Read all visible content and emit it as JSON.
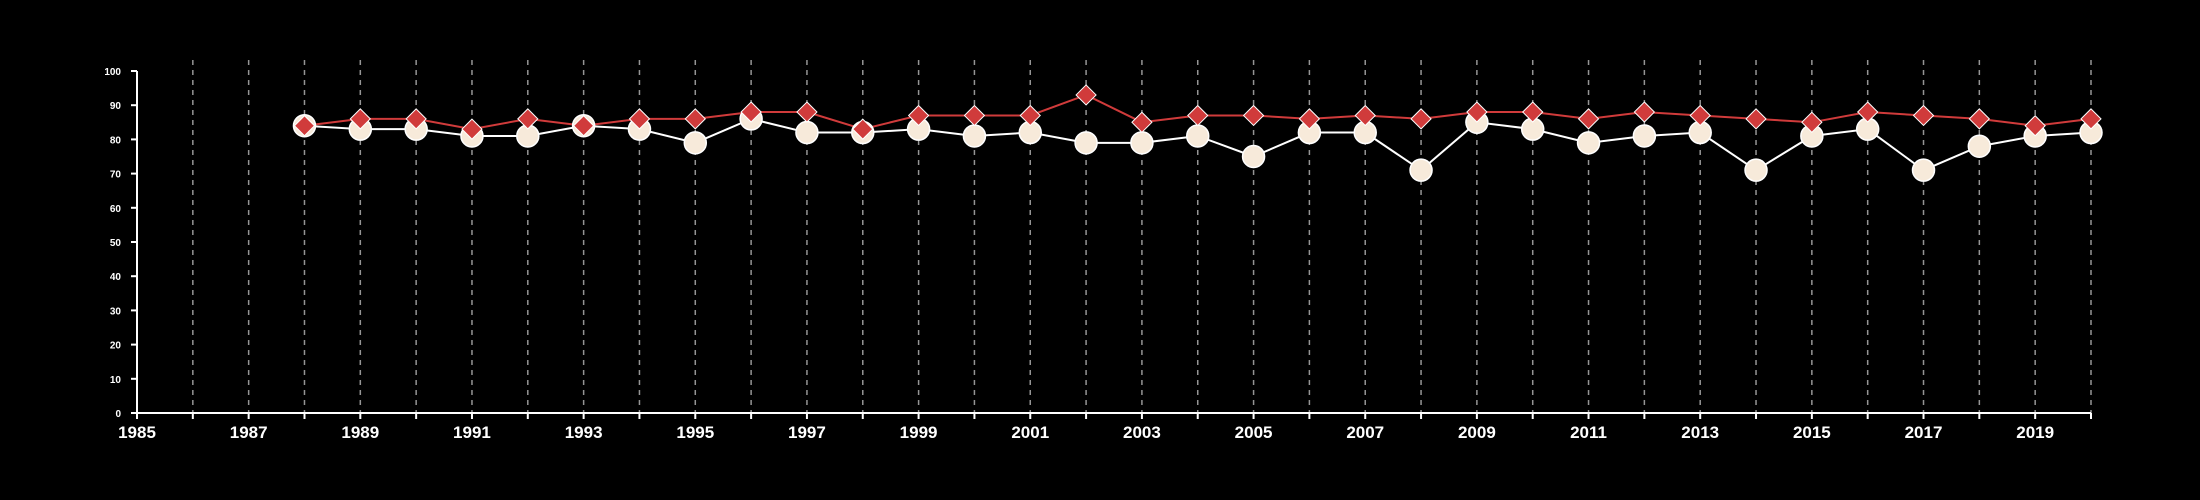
{
  "colors": {
    "background": "#000000",
    "axis": "#ffffff",
    "grid": "#bbbbbb",
    "series_red": "#d03b3b",
    "series_cream": "#f7eada",
    "series_cream_line": "#ffffff"
  },
  "chart_data": {
    "type": "line",
    "title": "",
    "xlabel": "",
    "ylabel": "",
    "xlim": [
      1985,
      2020
    ],
    "ylim": [
      0,
      100
    ],
    "x_ticks": [
      1985,
      1987,
      1989,
      1991,
      1993,
      1995,
      1997,
      1999,
      2001,
      2003,
      2005,
      2007,
      2009,
      2011,
      2013,
      2015,
      2017,
      2019
    ],
    "x_tick_labels": [
      "1985",
      "1987",
      "1989",
      "1991",
      "1993",
      "1995",
      "1997",
      "1999",
      "2001",
      "2003",
      "2005",
      "2007",
      "2009",
      "2011",
      "2013",
      "2015",
      "2017",
      "2019"
    ],
    "y_ticks": [
      0,
      10,
      20,
      30,
      40,
      50,
      60,
      70,
      80,
      90,
      100
    ],
    "y_tick_labels": [
      "0",
      "10",
      "20",
      "30",
      "40",
      "50",
      "60",
      "70",
      "80",
      "90",
      "100"
    ],
    "grid": "vertical dashed lines at every year",
    "legend": "none",
    "x": [
      1988,
      1989,
      1990,
      1991,
      1992,
      1993,
      1994,
      1995,
      1996,
      1997,
      1998,
      1999,
      2000,
      2001,
      2002,
      2003,
      2004,
      2005,
      2006,
      2007,
      2008,
      2009,
      2010,
      2011,
      2012,
      2013,
      2014,
      2015,
      2016,
      2017,
      2018,
      2019,
      2020
    ],
    "series": [
      {
        "marker": "circle",
        "color": "#f7eada",
        "values": [
          84,
          83,
          83,
          81,
          81,
          84,
          83,
          79,
          86,
          82,
          82,
          83,
          81,
          82,
          79,
          79,
          81,
          75,
          82,
          82,
          71,
          85,
          83,
          79,
          81,
          82,
          71,
          81,
          83,
          71,
          78,
          81,
          82
        ]
      },
      {
        "marker": "diamond",
        "color": "#d03b3b",
        "values": [
          84,
          86,
          86,
          83,
          86,
          84,
          86,
          86,
          88,
          88,
          83,
          87,
          87,
          87,
          93,
          85,
          87,
          87,
          86,
          87,
          86,
          88,
          88,
          86,
          88,
          87,
          86,
          85,
          88,
          87,
          86,
          84,
          86
        ]
      }
    ]
  }
}
